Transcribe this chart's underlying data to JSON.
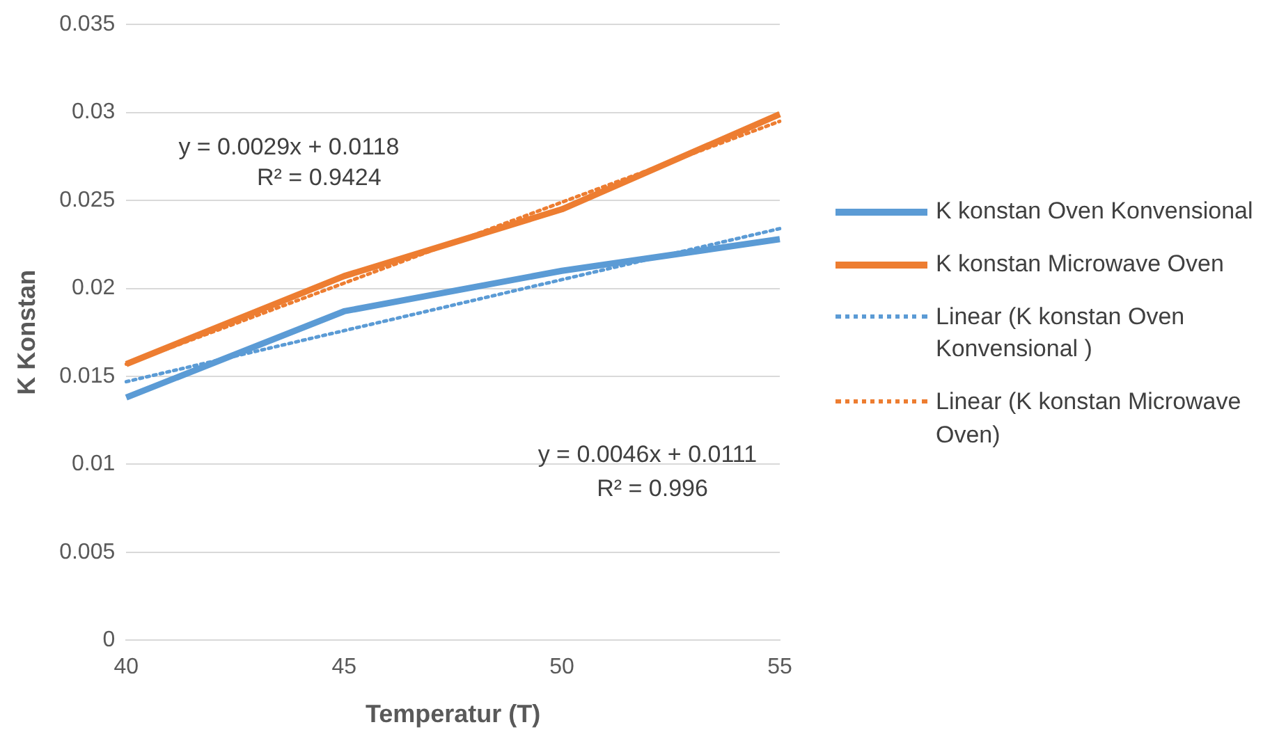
{
  "chart_data": {
    "type": "line",
    "xlabel": "Temperatur (T)",
    "ylabel": "K Konstan",
    "categories": [
      "40",
      "45",
      "50",
      "55"
    ],
    "series": [
      {
        "name": "K konstan Oven Konvensional",
        "color": "#5b9bd5",
        "values": [
          0.0138,
          0.0187,
          0.021,
          0.0228
        ]
      },
      {
        "name": "K konstan Microwave Oven",
        "color": "#ed7d31",
        "values": [
          0.0157,
          0.0207,
          0.0245,
          0.0299
        ]
      },
      {
        "name": "Linear (K konstan Oven Konvensional )",
        "color": "#5b9bd5",
        "values": [
          0.0147,
          0.0176,
          0.0205,
          0.0234
        ],
        "line_style": "dotted"
      },
      {
        "name": "Linear (K konstan Microwave Oven)",
        "color": "#ed7d31",
        "values": [
          0.0157,
          0.0203,
          0.0249,
          0.0295
        ],
        "line_style": "dotted"
      }
    ],
    "ylim": [
      0,
      0.035
    ],
    "yticks": [
      0,
      0.005,
      0.01,
      0.015,
      0.02,
      0.025,
      0.03,
      0.035
    ],
    "grid": "y",
    "legend": "right",
    "marker": "none",
    "line_style": "solid",
    "annotations": [
      "y = 0.0029x + 0.0118",
      "R² = 0.9424",
      "y = 0.0046x + 0.0111",
      "R² = 0.996"
    ]
  }
}
